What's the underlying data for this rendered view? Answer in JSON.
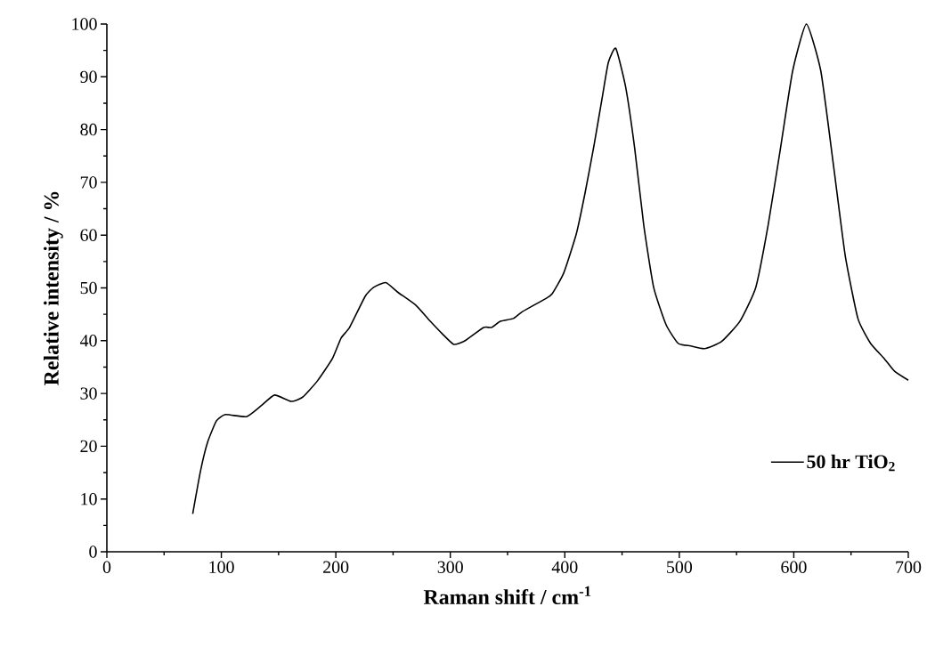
{
  "chart_data": {
    "type": "line",
    "xlabel": "Raman shift / cm$^{-1}$",
    "ylabel": "Relative intensity / %",
    "xlim": [
      0,
      700
    ],
    "xticks": [
      0,
      100,
      200,
      300,
      400,
      500,
      600,
      700
    ],
    "ylim": [
      0,
      100
    ],
    "yticks": [
      0,
      10,
      20,
      30,
      40,
      50,
      60,
      70,
      80,
      90,
      100
    ],
    "grid": false,
    "legend": "right",
    "marker": "none",
    "line_style": "solid",
    "series": [
      {
        "name": "50 hr TiO$_{2}$",
        "color": "#000000",
        "x": [
          75,
          81.7,
          87.9,
          95.7,
          103.6,
          122,
          135,
          146.5,
          161,
          171,
          184,
          197,
          204.6,
          212,
          225.6,
          233,
          243.6,
          254,
          270,
          282,
          293,
          303,
          313,
          329,
          336,
          344,
          355,
          363,
          383.5,
          389,
          399,
          410,
          417.7,
          425.5,
          433,
          438,
          444.5,
          453,
          461,
          469,
          477.6,
          488.5,
          499,
          510,
          522,
          536.7,
          553,
          566.8,
          577.5,
          588.4,
          599,
          611,
          623.6,
          634.5,
          645,
          656,
          667,
          679,
          688,
          700
        ],
        "values": [
          7.2,
          15.2,
          20.7,
          24.8,
          26.0,
          25.6,
          27.7,
          29.7,
          28.5,
          29.3,
          32.4,
          36.6,
          40.5,
          42.5,
          48.4,
          50.1,
          51.0,
          49.2,
          46.7,
          43.8,
          41.3,
          39.3,
          40.0,
          42.5,
          42.5,
          43.7,
          44.2,
          45.5,
          48.0,
          48.9,
          52.8,
          60.2,
          68.0,
          77.0,
          86.5,
          92.7,
          95.4,
          88.2,
          76.5,
          61.8,
          50.1,
          43.0,
          39.5,
          39.0,
          38.5,
          39.8,
          43.7,
          50.1,
          61.8,
          76.5,
          91.1,
          100.0,
          91.1,
          73.5,
          56.0,
          44.2,
          39.5,
          36.6,
          34.2,
          32.5
        ]
      }
    ]
  }
}
